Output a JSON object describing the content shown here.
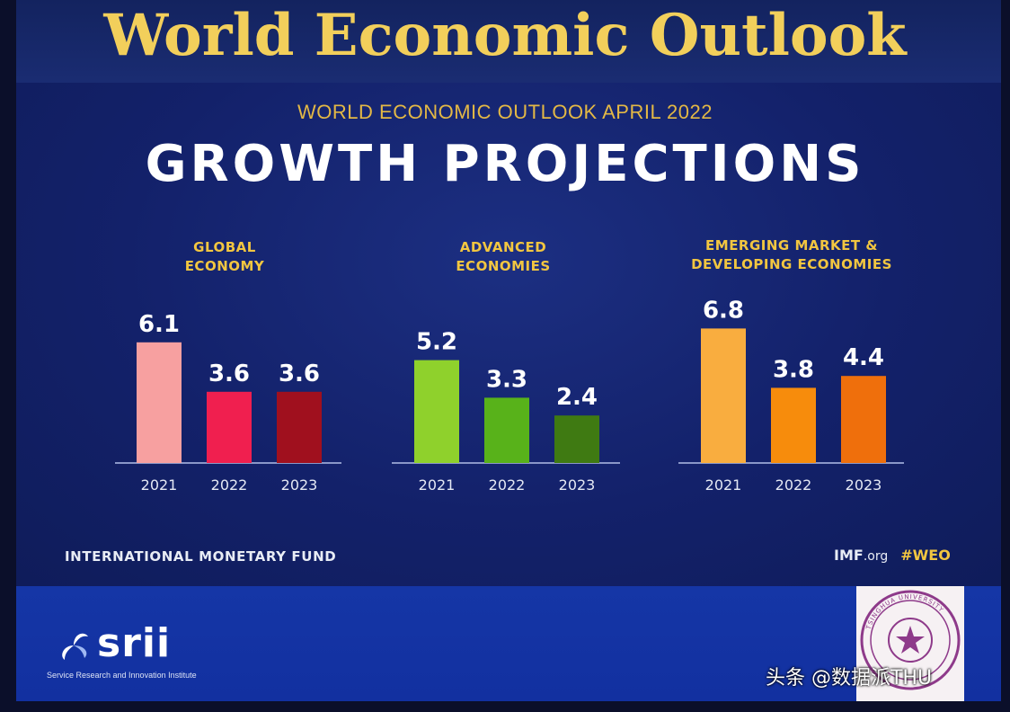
{
  "header": {
    "title": "World Economic Outlook",
    "subtitle": "WORLD ECONOMIC OUTLOOK APRIL 2022",
    "headline": "GROWTH PROJECTIONS"
  },
  "chart_data": [
    {
      "type": "bar",
      "title": "GLOBAL\nECONOMY",
      "categories": [
        "2021",
        "2022",
        "2023"
      ],
      "values": [
        6.1,
        3.6,
        3.6
      ],
      "value_labels": [
        "6.1",
        "3.6",
        "3.6"
      ],
      "colors": [
        "#f7a0a0",
        "#f01f4f",
        "#a0101e"
      ],
      "ylim": [
        0,
        7
      ]
    },
    {
      "type": "bar",
      "title": "ADVANCED\nECONOMIES",
      "categories": [
        "2021",
        "2022",
        "2023"
      ],
      "values": [
        5.2,
        3.3,
        2.4
      ],
      "value_labels": [
        "5.2",
        "3.3",
        "2.4"
      ],
      "colors": [
        "#8fd12c",
        "#58b21a",
        "#3f7a12"
      ],
      "ylim": [
        0,
        7
      ]
    },
    {
      "type": "bar",
      "title": "EMERGING MARKET &\nDEVELOPING ECONOMIES",
      "categories": [
        "2021",
        "2022",
        "2023"
      ],
      "values": [
        6.8,
        3.8,
        4.4
      ],
      "value_labels": [
        "6.8",
        "3.8",
        "4.4"
      ],
      "colors": [
        "#f9ad3f",
        "#f78c0c",
        "#ef6f0c"
      ],
      "ylim": [
        0,
        7
      ]
    }
  ],
  "footer": {
    "org_name": "INTERNATIONAL MONETARY FUND",
    "site_main": "IMF",
    "site_tld": ".org",
    "hashtag": "#WEO"
  },
  "branding": {
    "srii_word": "srii",
    "srii_subtitle": "Service Research and Innovation Institute",
    "seal_text": "TSINGHUA UNIVERSITY",
    "watermark": "头条 @数据派THU"
  }
}
